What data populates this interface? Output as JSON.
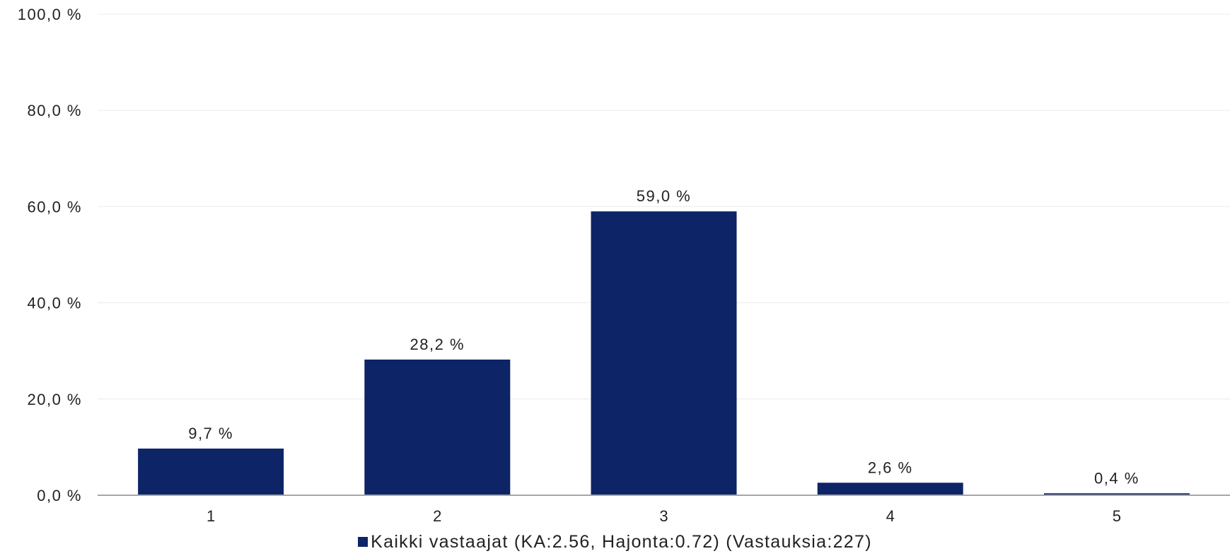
{
  "chart_data": {
    "type": "bar",
    "categories": [
      "1",
      "2",
      "3",
      "4",
      "5"
    ],
    "series": [
      {
        "name": "Kaikki vastaajat (KA:2.56, Hajonta:0.72) (Vastauksia:227)",
        "values": [
          9.7,
          28.2,
          59.0,
          2.6,
          0.4
        ],
        "labels": [
          "9,7 %",
          "28,2 %",
          "59,0 %",
          "2,6 %",
          "0,4 %"
        ]
      }
    ],
    "yticks": [
      "0,0 %",
      "20,0 %",
      "40,0 %",
      "60,0 %",
      "80,0 %",
      "100,0 %"
    ],
    "ylim": [
      0,
      100
    ],
    "grid": true,
    "legend_position": "bottom",
    "colors": {
      "bar": "#0d2466",
      "bar_top": "#4a5580",
      "grid": "#ececec",
      "axis": "#a6a6a6"
    }
  }
}
